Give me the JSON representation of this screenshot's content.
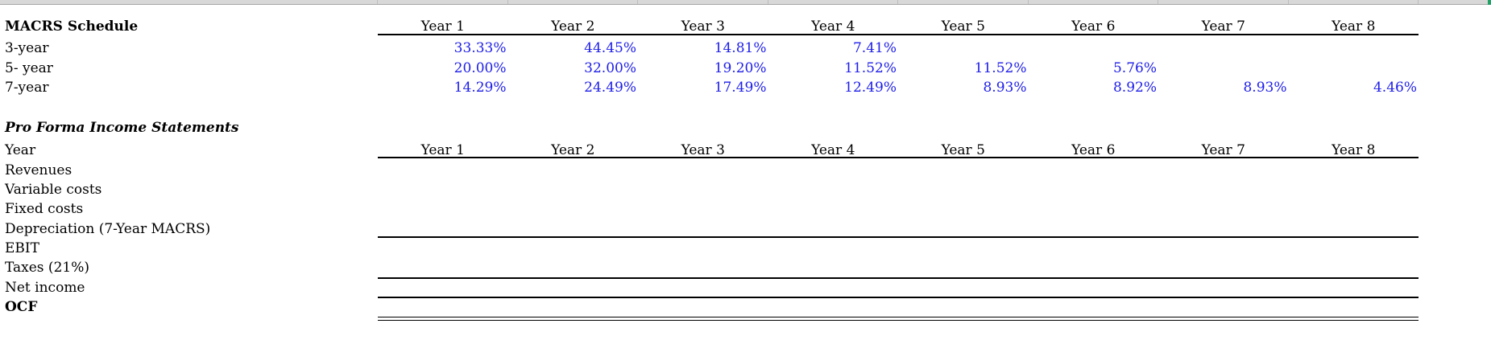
{
  "colors": {
    "value_text": "#1d1de8",
    "strip_bg": "#d8d8d8",
    "strip_border": "#a6a6a6",
    "strip_tick": "#bdbdbd",
    "corner_accent": "#21a366"
  },
  "macrs": {
    "title": "MACRS Schedule",
    "columns": [
      "Year 1",
      "Year 2",
      "Year 3",
      "Year 4",
      "Year 5",
      "Year 6",
      "Year 7",
      "Year 8"
    ],
    "rows": [
      {
        "label": "3-year",
        "values": [
          "33.33%",
          "44.45%",
          "14.81%",
          "7.41%",
          "",
          "",
          "",
          ""
        ]
      },
      {
        "label": "5- year",
        "values": [
          "20.00%",
          "32.00%",
          "19.20%",
          "11.52%",
          "11.52%",
          "5.76%",
          "",
          ""
        ]
      },
      {
        "label": "7-year",
        "values": [
          "14.29%",
          "24.49%",
          "17.49%",
          "12.49%",
          "8.93%",
          "8.92%",
          "8.93%",
          "4.46%"
        ]
      }
    ]
  },
  "pro_forma": {
    "title": "Pro Forma Income Statements",
    "year_row_label": "Year",
    "columns": [
      "Year 1",
      "Year 2",
      "Year 3",
      "Year 4",
      "Year 5",
      "Year 6",
      "Year 7",
      "Year 8"
    ],
    "row_labels": {
      "revenues": "Revenues",
      "variable_costs": "Variable costs",
      "fixed_costs": "Fixed costs",
      "depreciation": "Depreciation (7-Year MACRS)",
      "ebit": "EBIT",
      "taxes": "Taxes (21%)",
      "net_income": "Net income",
      "ocf": "OCF"
    }
  }
}
